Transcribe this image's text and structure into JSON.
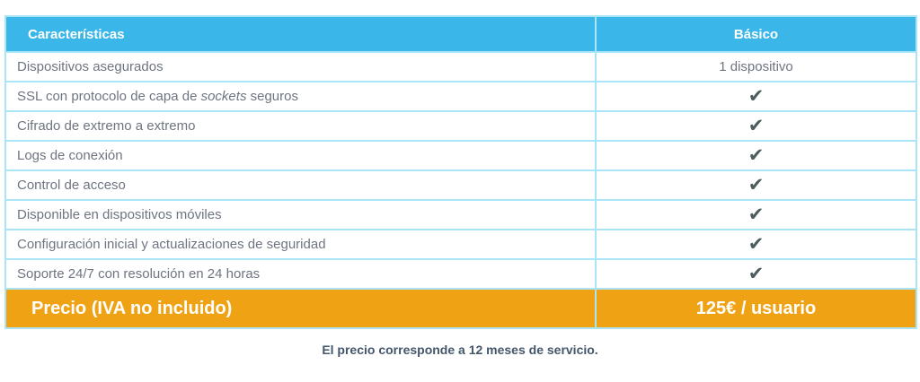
{
  "colors": {
    "header_bg": "#3bb6e9",
    "border": "#a9e5f7",
    "footer_bg": "#efa314",
    "check": "#4d5c5e",
    "body_text": "#6e7581",
    "header_text": "#ffffff",
    "caption_text": "#44566b"
  },
  "icons": {
    "check": "✔"
  },
  "table": {
    "columns": {
      "features": "Características",
      "plan": "Básico"
    },
    "rows": [
      {
        "label": "Dispositivos asegurados",
        "value": "1 dispositivo"
      },
      {
        "label_parts": [
          "SSL con protocolo de capa de ",
          "sockets",
          " seguros"
        ],
        "value": "check"
      },
      {
        "label": "Cifrado de extremo a extremo",
        "value": "check"
      },
      {
        "label": "Logs de conexión",
        "value": "check"
      },
      {
        "label": "Control de acceso",
        "value": "check"
      },
      {
        "label": "Disponible en dispositivos móviles",
        "value": "check"
      },
      {
        "label": "Configuración inicial y actualizaciones de seguridad",
        "value": "check"
      },
      {
        "label": "Soporte 24/7 con resolución en 24 horas",
        "value": "check"
      }
    ],
    "footer": {
      "label": "Precio (IVA no incluido)",
      "value": "125€ / usuario"
    }
  },
  "caption": "El precio corresponde a 12 meses de servicio."
}
